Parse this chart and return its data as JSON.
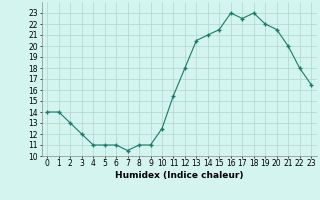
{
  "x": [
    0,
    1,
    2,
    3,
    4,
    5,
    6,
    7,
    8,
    9,
    10,
    11,
    12,
    13,
    14,
    15,
    16,
    17,
    18,
    19,
    20,
    21,
    22,
    23
  ],
  "y": [
    14.0,
    14.0,
    13.0,
    12.0,
    11.0,
    11.0,
    11.0,
    10.5,
    11.0,
    11.0,
    12.5,
    15.5,
    18.0,
    20.5,
    21.0,
    21.5,
    23.0,
    22.5,
    23.0,
    22.0,
    21.5,
    20.0,
    18.0,
    16.5
  ],
  "line_color": "#1a7a6a",
  "marker": "+",
  "marker_size": 3.5,
  "bg_color": "#d4f5ef",
  "grid_color": "#b0d8cc",
  "xlabel": "Humidex (Indice chaleur)",
  "ylim": [
    10,
    24
  ],
  "xlim": [
    -0.5,
    23.5
  ],
  "yticks": [
    10,
    11,
    12,
    13,
    14,
    15,
    16,
    17,
    18,
    19,
    20,
    21,
    22,
    23
  ],
  "xticks": [
    0,
    1,
    2,
    3,
    4,
    5,
    6,
    7,
    8,
    9,
    10,
    11,
    12,
    13,
    14,
    15,
    16,
    17,
    18,
    19,
    20,
    21,
    22,
    23
  ],
  "tick_fontsize": 5.5,
  "label_fontsize": 6.5
}
